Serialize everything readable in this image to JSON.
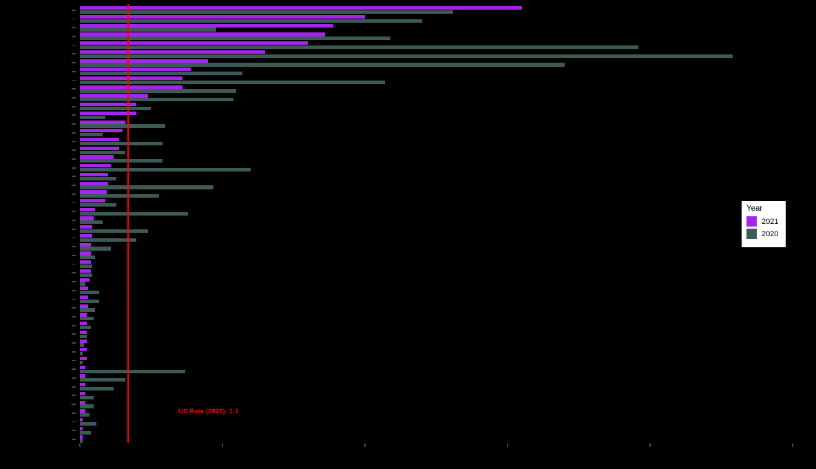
{
  "chart_data": {
    "type": "bar",
    "orientation": "horizontal",
    "title_visible": false,
    "category_axis": {
      "n_categories": 50,
      "tick_marks_visible": true,
      "tick_labels_visible": false
    },
    "x_axis": {
      "min": 0,
      "max": 25.2,
      "ticks": [
        0,
        5,
        10,
        15,
        20,
        25
      ],
      "tick_labels_visible": false,
      "gridlines": false
    },
    "series": [
      {
        "name": "2021",
        "color": "#a524ee",
        "values": [
          15.5,
          10.0,
          8.9,
          8.6,
          8.0,
          6.5,
          4.5,
          3.9,
          3.6,
          3.6,
          2.4,
          2.0,
          2.0,
          1.6,
          1.5,
          1.4,
          1.4,
          1.2,
          1.1,
          1.0,
          1.0,
          0.95,
          0.9,
          0.55,
          0.5,
          0.45,
          0.45,
          0.4,
          0.4,
          0.4,
          0.4,
          0.35,
          0.3,
          0.3,
          0.3,
          0.25,
          0.25,
          0.25,
          0.25,
          0.25,
          0.25,
          0.2,
          0.2,
          0.2,
          0.2,
          0.2,
          0.2,
          0.1,
          0.1,
          0.1
        ]
      },
      {
        "name": "2020",
        "color": "#3e5a57",
        "values": [
          13.1,
          12.0,
          4.8,
          10.9,
          19.6,
          22.9,
          17.0,
          5.7,
          10.7,
          5.5,
          5.4,
          2.5,
          0.9,
          3.0,
          0.8,
          2.9,
          1.6,
          2.9,
          6.0,
          1.3,
          4.7,
          2.8,
          1.3,
          3.8,
          0.8,
          2.4,
          2.0,
          1.1,
          0.55,
          0.45,
          0.45,
          0.2,
          0.7,
          0.7,
          0.55,
          0.5,
          0.4,
          0.25,
          0.15,
          0.1,
          0.1,
          3.7,
          1.6,
          1.2,
          0.5,
          0.5,
          0.35,
          0.6,
          0.4,
          0.1
        ]
      }
    ],
    "reference_line": {
      "value": 1.7,
      "color": "#ff0000",
      "label": "US Rate (2021): 1.7"
    },
    "legend": {
      "title": "Year",
      "position": "right",
      "background": "#ffffff",
      "entries": [
        {
          "label": "2021",
          "color": "#a524ee"
        },
        {
          "label": "2020",
          "color": "#3e5a57"
        }
      ]
    },
    "colors": {
      "background": "#000000",
      "tick_marks": "#4a4a4a"
    }
  }
}
